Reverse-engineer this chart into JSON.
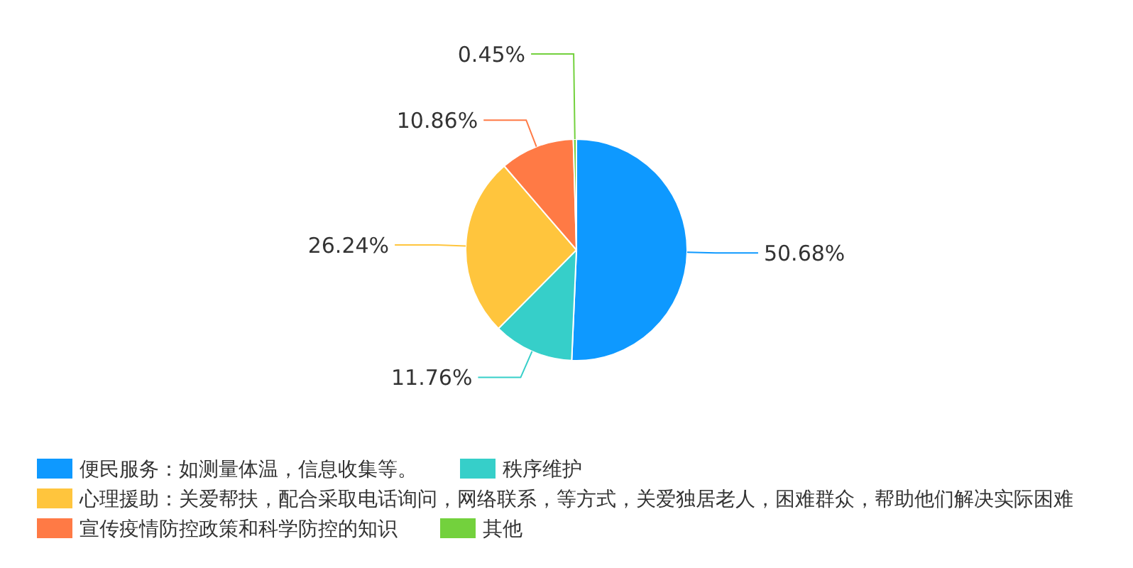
{
  "chart_data": {
    "type": "pie",
    "categories": [
      "便民服务：如测量体温，信息收集等。",
      "秩序维护",
      "心理援助：关爱帮扶，配合采取电话询问，网络联系，等方式，关爱独居老人，困难群众，帮助他们解决实际困难",
      "宣传疫情防控政策和科学防控的知识",
      "其他"
    ],
    "values": [
      50.68,
      11.76,
      26.24,
      10.86,
      0.45
    ],
    "colors": [
      "#0e99ff",
      "#36cfc9",
      "#ffc53d",
      "#ff7a45",
      "#73d13d"
    ],
    "value_labels": [
      "50.68%",
      "11.76%",
      "26.24%",
      "10.86%",
      "0.45%"
    ],
    "legend": "bottom"
  }
}
